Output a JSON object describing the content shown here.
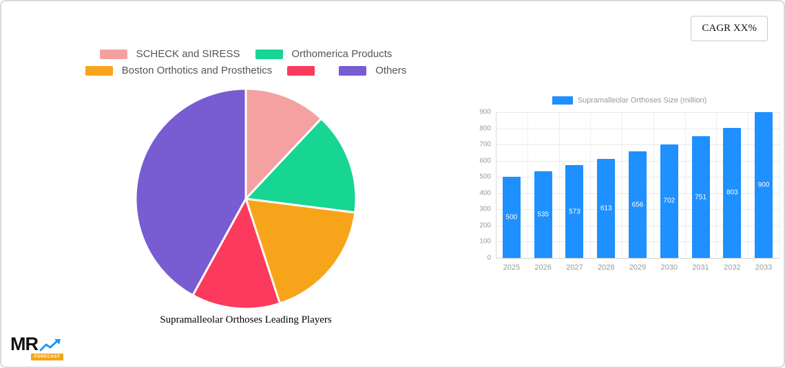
{
  "page": {
    "cagr_label": "CAGR XX%"
  },
  "logo": {
    "text": "MR",
    "tagline": "FORECAST",
    "icon": "trend-arrow-icon",
    "tagline_bg": "#F5A41B",
    "arrow_color": "#2196F3"
  },
  "chart_data": [
    {
      "type": "pie",
      "title": "Supramalleolar Orthoses Leading Players",
      "labels": [
        "SCHECK and SIRESS",
        "Orthomerica Products",
        "Boston Orthotics and Prosthetics",
        "",
        "Others"
      ],
      "values": [
        12,
        15,
        18,
        13,
        42
      ],
      "colors": [
        "#F5A1A1",
        "#17D592",
        "#F8A41B",
        "#FB3A5D",
        "#785CD2"
      ],
      "legend_position": "top",
      "slice_border_color": "#ffffff"
    },
    {
      "type": "bar",
      "title": "Supramalleolar Orthoses Size (million)",
      "categories": [
        "2025",
        "2026",
        "2027",
        "2028",
        "2029",
        "2030",
        "2031",
        "2032",
        "2033"
      ],
      "values": [
        500,
        535,
        573,
        613,
        656,
        702,
        751,
        803,
        900
      ],
      "xlabel": "",
      "ylabel": "",
      "ylim": [
        0,
        900
      ],
      "ytick_step": 100,
      "bar_color": "#1E90FF",
      "grid": true,
      "legend_position": "top",
      "value_labels": "inside-white"
    }
  ]
}
